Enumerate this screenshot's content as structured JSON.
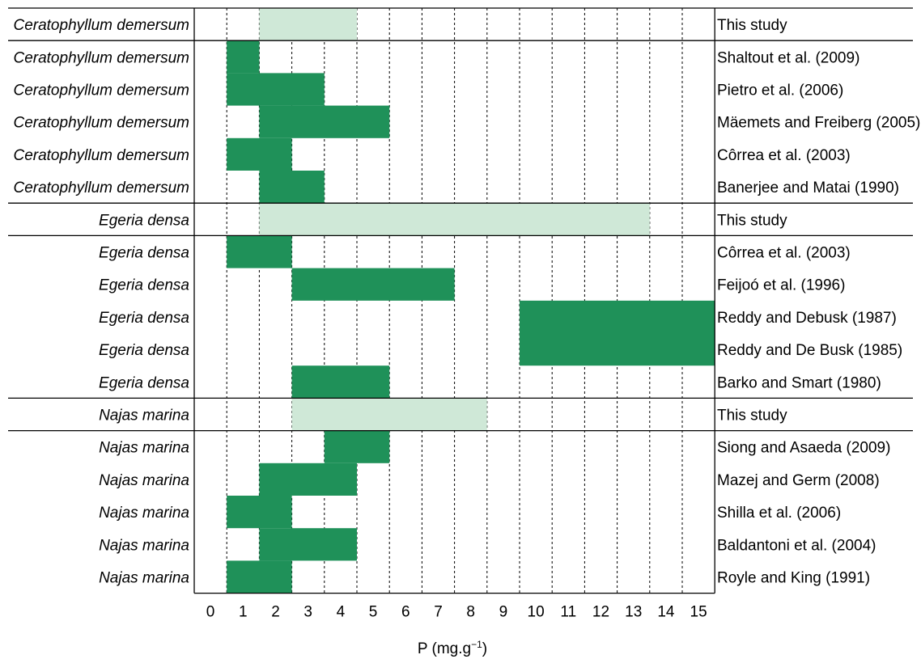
{
  "chart_data": {
    "type": "heatmap",
    "title": "",
    "xlabel": "P (mg.g",
    "xlabel_sup": "−1",
    "xlabel_close": ")",
    "xlim": [
      0,
      15
    ],
    "x_ticks": [
      "0",
      "1",
      "2",
      "3",
      "4",
      "5",
      "6",
      "7",
      "8",
      "9",
      "10",
      "11",
      "12",
      "13",
      "14",
      "15"
    ],
    "grid": "dotted vertical lines between integer values",
    "colors": {
      "literature": "#1f9159",
      "this_study": "#cfe8d7"
    },
    "groups": [
      {
        "species": "Ceratophyllum demersum",
        "this_study": {
          "source": "This study",
          "range": [
            2,
            4
          ]
        },
        "rows": [
          {
            "species": "Ceratophyllum demersum",
            "source": "Shaltout et al. (2009)",
            "range": [
              1,
              1
            ]
          },
          {
            "species": "Ceratophyllum demersum",
            "source": "Pietro et al. (2006)",
            "range": [
              1,
              3
            ]
          },
          {
            "species": "Ceratophyllum demersum",
            "source": "Mäemets and Freiberg (2005)",
            "range": [
              2,
              5
            ]
          },
          {
            "species": "Ceratophyllum demersum",
            "source": "Côrrea et al. (2003)",
            "range": [
              1,
              2
            ]
          },
          {
            "species": "Ceratophyllum demersum",
            "source": "Banerjee and Matai (1990)",
            "range": [
              2,
              3
            ]
          }
        ]
      },
      {
        "species": "Egeria densa",
        "this_study": {
          "source": "This study",
          "range": [
            2,
            13
          ]
        },
        "rows": [
          {
            "species": "Egeria densa",
            "source": "Côrrea et al. (2003)",
            "range": [
              1,
              2
            ]
          },
          {
            "species": "Egeria densa",
            "source": "Feijoó et al. (1996)",
            "range": [
              3,
              7
            ]
          },
          {
            "species": "Egeria densa",
            "source": "Reddy and Debusk (1987)",
            "range": [
              10,
              15
            ]
          },
          {
            "species": "Egeria densa",
            "source": "Reddy and De Busk (1985)",
            "range": [
              10,
              15
            ]
          },
          {
            "species": "Egeria densa",
            "source": "Barko and Smart (1980)",
            "range": [
              3,
              5
            ]
          }
        ]
      },
      {
        "species": "Najas marina",
        "this_study": {
          "source": "This study",
          "range": [
            3,
            8
          ]
        },
        "rows": [
          {
            "species": "Najas marina",
            "source": "Siong and Asaeda (2009)",
            "range": [
              4,
              5
            ]
          },
          {
            "species": "Najas marina",
            "source": "Mazej and Germ (2008)",
            "range": [
              2,
              4
            ]
          },
          {
            "species": "Najas marina",
            "source": "Shilla et al. (2006)",
            "range": [
              1,
              2
            ]
          },
          {
            "species": "Najas marina",
            "source": "Baldantoni et al. (2004)",
            "range": [
              2,
              4
            ]
          },
          {
            "species": "Najas marina",
            "source": "Royle and King (1991)",
            "range": [
              1,
              2
            ]
          }
        ]
      }
    ]
  }
}
